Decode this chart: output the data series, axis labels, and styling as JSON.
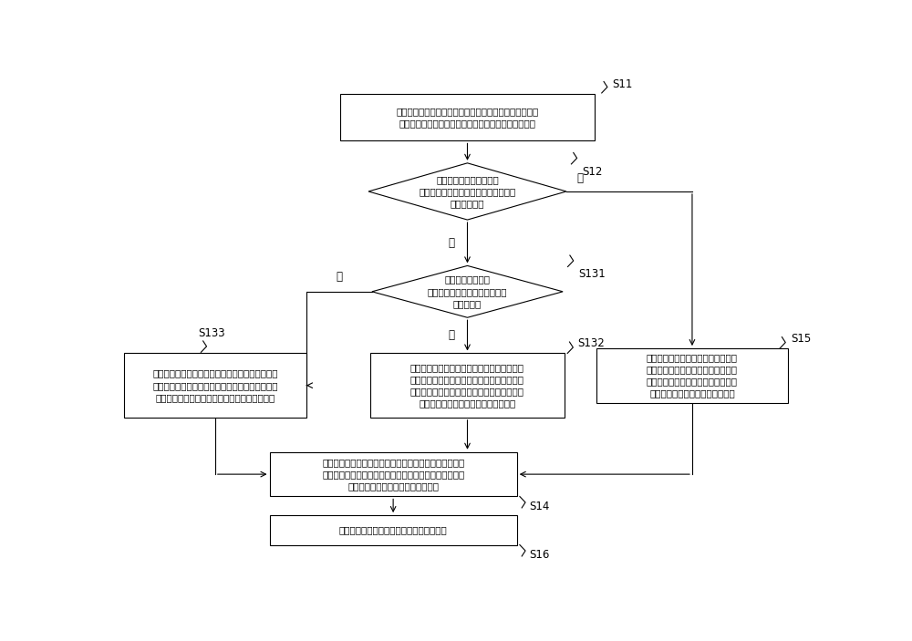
{
  "bg_color": "#ffffff",
  "line_color": "#000000",
  "box_color": "#ffffff",
  "box_edge_color": "#000000",
  "text_color": "#000000",
  "font_size": 7.5,
  "label_font_size": 8.5,
  "s11_text": "基于向测试光纤所发射的测试信号来接收和采集所述测试\n光纤的反射信号，以得到对应所述反射信号的检测数据",
  "s12_text": "将所采集的检测数据进行\n小波域的变换，并从高频系数中确定是\n否包含极値点",
  "s131_text": "确定各所述极値点\n所对应的检测数据是否位于一个\n盲区宽度内",
  "s132_text": "选择模値最大的极値点，并从所选择的极値点\n所对应的检测数据之后的盲区宽度内确定具有\n峰値及谷値的检测数据，并将所述极値点和峰\n値及谷値所对应的检测数据作为关键点",
  "s133_text": "从每个所述极値点所对应的检测数据之后的盲区宽\n度内确定具有峰値及谷値的检测数据，并将所述极\n値点和峰値及谷値所对应的检测数据作为关键点",
  "s14_text": "将所确定的关键点所间隔开的其他检测数据进行分区间的\n平均计算，并将从每个区间的检测数据中选取一个检测数\n据作为对应相应区间平均値的关键点",
  "s15_text": "将所采集的检测数据分区间的计算平\n均値，再从各区间中选取一个检测数\n据作为关键点，将相应区间的平均値\n作为所选取的关键点所对应的数値",
  "s16_text": "将所确定的各关键点按时序连线并予以显示",
  "yes": "是",
  "no": "否"
}
